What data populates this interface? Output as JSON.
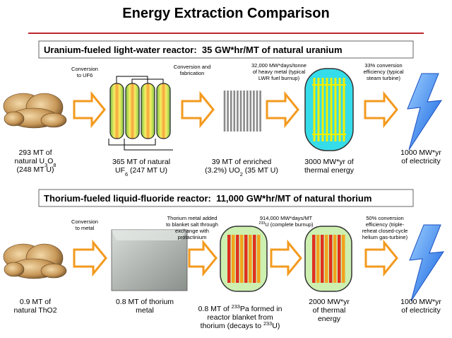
{
  "title": "Energy Extraction Comparison",
  "uranium": {
    "header": "Uranium-fueled light-water reactor:  35 GW*hr/MT of natural uranium",
    "processes": [
      [
        [
          "Conversion"
        ],
        [
          "to UF6"
        ]
      ],
      [
        [
          "Conversion and"
        ],
        [
          "fabrication"
        ]
      ],
      [
        [
          "32,000 MW*days/tonne"
        ],
        [
          "of heavy metal (typical"
        ],
        [
          "LWR fuel burnup)"
        ]
      ],
      [
        [
          "33% conversion"
        ],
        [
          "efficiency (typical"
        ],
        [
          "steam turbine)"
        ]
      ]
    ],
    "products": [
      [
        [
          "293 MT of"
        ],
        [
          "natural U",
          "3",
          "O",
          "8"
        ],
        [
          "(248 MT U)"
        ]
      ],
      [
        [
          "365 MT of natural"
        ],
        [
          "UF",
          "6",
          " (247 MT U)"
        ]
      ],
      [
        [
          "39 MT of enriched"
        ],
        [
          "(3.2%) UO",
          "2",
          " (35 MT U)"
        ]
      ],
      [
        [
          "3000 MW*yr of"
        ],
        [
          "thermal energy"
        ]
      ],
      [
        [
          "1000 MW*yr"
        ],
        [
          "of electricity"
        ]
      ]
    ]
  },
  "thorium": {
    "header": "Thorium-fueled liquid-fluoride reactor:  11,000 GW*hr/MT of natural thorium",
    "processes": [
      [
        [
          "Conversion"
        ],
        [
          "to metal"
        ]
      ],
      [
        [
          "Thorium metal added"
        ],
        [
          "to blanket salt through"
        ],
        [
          "exchange with"
        ],
        [
          "protactinium"
        ]
      ],
      [
        [
          "914,000 MW*days/MT"
        ],
        [
          "233",
          "U (complete burnup)"
        ]
      ],
      [
        [
          "50% conversion"
        ],
        [
          "efficiency (triple-"
        ],
        [
          "reheat closed-cycle"
        ],
        [
          "helium gas-turbine)"
        ]
      ]
    ],
    "products": [
      [
        [
          "0.9 MT of"
        ],
        [
          "natural ThO2"
        ]
      ],
      [
        [
          "0.8 MT of thorium"
        ],
        [
          "metal"
        ]
      ],
      [
        [
          "0.8 MT of ",
          "233",
          "Pa formed in"
        ],
        [
          "reactor blanket from"
        ],
        [
          "thorium (decays to ",
          "233",
          "U)"
        ]
      ],
      [
        [
          "2000 MW*yr"
        ],
        [
          "of thermal"
        ],
        [
          "energy"
        ]
      ],
      [
        [
          "1000 MW*yr"
        ],
        [
          "of electricity"
        ]
      ]
    ]
  }
}
